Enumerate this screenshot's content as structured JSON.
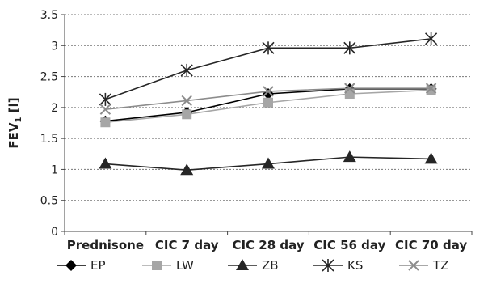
{
  "chart_data": {
    "type": "line",
    "title": "",
    "xlabel": "",
    "ylabel": "FEV",
    "ylabel_subscript": "1",
    "ylabel_unit": "[l]",
    "ylim": [
      0,
      3.5
    ],
    "yticks": [
      "0",
      "0.5",
      "1",
      "1.5",
      "2",
      "2.5",
      "3",
      "3.5"
    ],
    "grid": "horizontal dotted",
    "legend_position": "bottom",
    "categories": [
      "Prednisone",
      "CIC 7 day",
      "CIC 28 day",
      "CIC 56 day",
      "CIC 70 day"
    ],
    "series": [
      {
        "name": "EP",
        "marker": "diamond",
        "color": "#000000",
        "values": [
          1.78,
          1.92,
          2.22,
          2.3,
          2.3
        ]
      },
      {
        "name": "LW",
        "marker": "square",
        "color": "#a6a6a6",
        "values": [
          1.76,
          1.89,
          2.08,
          2.22,
          2.28
        ]
      },
      {
        "name": "ZB",
        "marker": "triangle",
        "color": "#262626",
        "values": [
          1.09,
          0.99,
          1.09,
          1.2,
          1.17
        ]
      },
      {
        "name": "KS",
        "marker": "asterisk",
        "color": "#262626",
        "values": [
          2.13,
          2.6,
          2.96,
          2.96,
          3.11
        ]
      },
      {
        "name": "TZ",
        "marker": "x",
        "color": "#8c8c8c",
        "values": [
          1.97,
          2.11,
          2.26,
          2.31,
          2.31
        ]
      }
    ]
  }
}
